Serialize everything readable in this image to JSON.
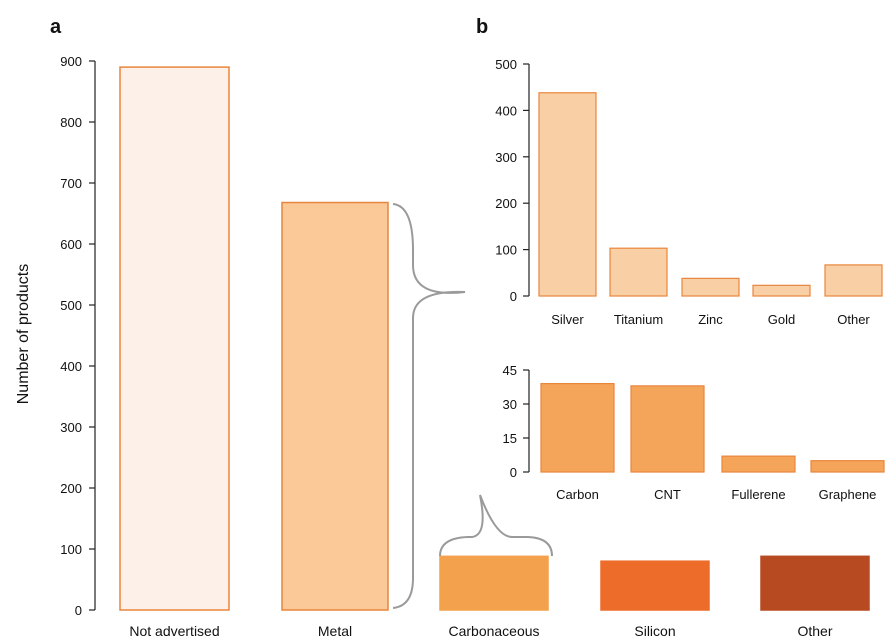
{
  "colors": {
    "not_advertised": "#fdf0e8",
    "metal": "#fbc898",
    "metal_sub": "#f9d0a6",
    "carbonaceous": "#f4a14d",
    "carbon_sub": "#f5a55a",
    "silicon": "#ed6c2a",
    "other": "#b84a22",
    "bar_edge": "#e8863c",
    "brace": "#9a9a9a"
  },
  "chart_data": [
    {
      "panel": "a",
      "type": "bar",
      "ylabel": "Number of products",
      "xlabel": "",
      "ylim": [
        0,
        900
      ],
      "yticks": [
        0,
        100,
        200,
        300,
        400,
        500,
        600,
        700,
        800,
        900
      ],
      "categories": [
        "Not advertised",
        "Metal",
        "Carbonaceous",
        "Silicon",
        "Other"
      ],
      "values": [
        890,
        668,
        88,
        80,
        88
      ]
    },
    {
      "panel": "b",
      "type": "bar",
      "ylim": [
        0,
        500
      ],
      "yticks": [
        0,
        100,
        200,
        300,
        400,
        500
      ],
      "categories": [
        "Silver",
        "Titanium",
        "Zinc",
        "Gold",
        "Other"
      ],
      "values": [
        438,
        103,
        38,
        23,
        67
      ]
    },
    {
      "panel": "b-lower",
      "type": "bar",
      "ylim": [
        0,
        45
      ],
      "yticks": [
        0,
        15,
        30,
        45
      ],
      "categories": [
        "Carbon",
        "CNT",
        "Fullerene",
        "Graphene"
      ],
      "values": [
        39,
        38,
        7,
        5
      ]
    }
  ]
}
